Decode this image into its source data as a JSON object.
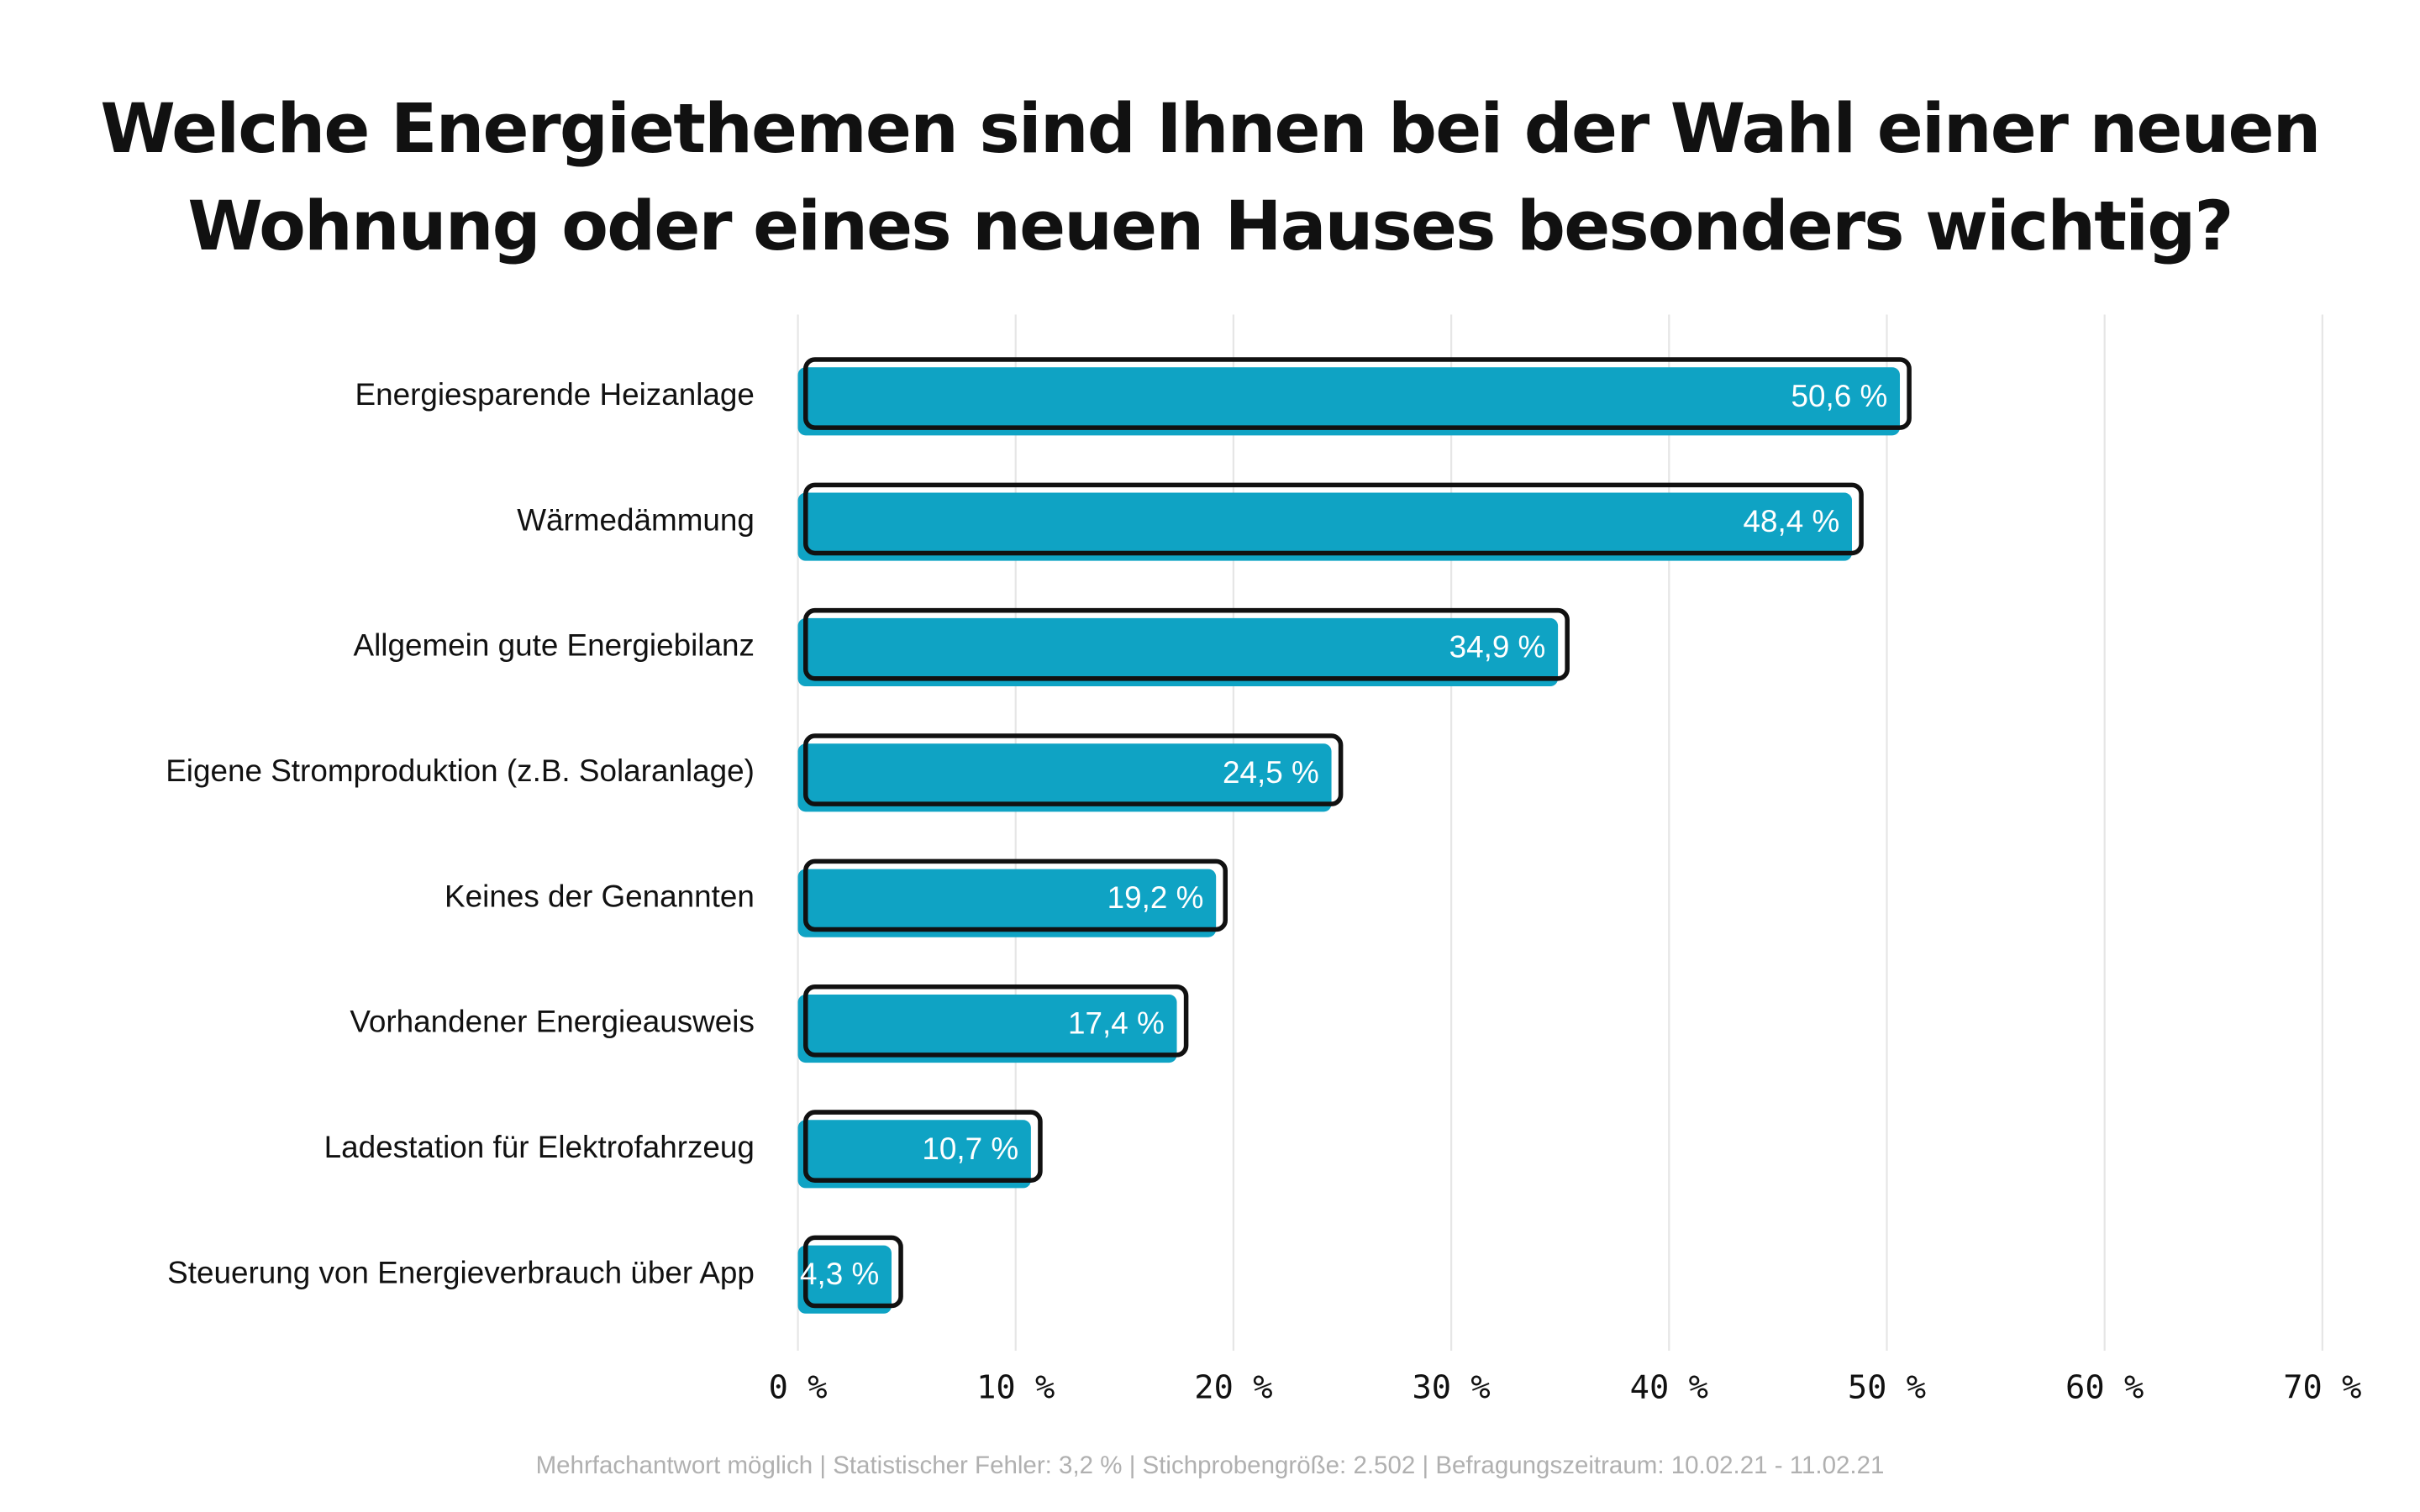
{
  "chart_data": {
    "type": "hbar",
    "title": "Welche Energiethemen sind Ihnen bei der Wahl einer neuen Wohnung oder eines neuen Hauses besonders wichtig?",
    "categories": [
      "Energiesparende Heizanlage",
      "Wärmedämmung",
      "Allgemein gute Energiebilanz",
      "Eigene Stromproduktion (z.B. Solaranlage)",
      "Keines der Genannten",
      "Vorhandener Energieausweis",
      "Ladestation für Elektrofahrzeug",
      "Steuerung von Energieverbrauch über App"
    ],
    "values": [
      50.6,
      48.4,
      34.9,
      24.5,
      19.2,
      17.4,
      10.7,
      4.3
    ],
    "value_labels": [
      "50,6 %",
      "48,4 %",
      "34,9 %",
      "24,5 %",
      "19,2 %",
      "17,4 %",
      "10,7 %",
      "4,3 %"
    ],
    "color": "#0fa3c4",
    "xlim": [
      0,
      70
    ],
    "xticks": [
      {
        "value": 0,
        "label": "0 %"
      },
      {
        "value": 10,
        "label": "10 %"
      },
      {
        "value": 20,
        "label": "20 %"
      },
      {
        "value": 30,
        "label": "30 %"
      },
      {
        "value": 40,
        "label": "40 %"
      },
      {
        "value": 50,
        "label": "50 %"
      },
      {
        "value": 60,
        "label": "60 %"
      },
      {
        "value": 70,
        "label": "70 %"
      }
    ],
    "grid": true,
    "footnote": "Mehrfachantwort möglich | Statistischer Fehler: 3,2 % | Stichprobengröße: 2.502 | Befragungszeitraum: 10.02.21 - 11.02.21"
  }
}
